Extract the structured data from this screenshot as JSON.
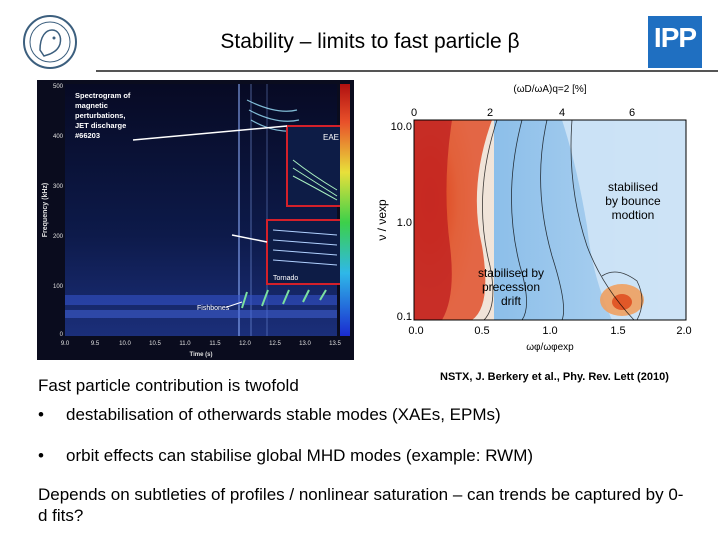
{
  "header": {
    "title": "Stability – limits to fast particle β",
    "logo_left": "max-planck-seal-logo",
    "logo_right_text": "IPP"
  },
  "spectrogram": {
    "caption_lines": [
      "Spectrogram of",
      "magnetic",
      "perturbations,",
      "JET discharge",
      "#66203"
    ],
    "y_axis_label": "Frequency (kHz)",
    "x_axis_label": "Time (s)",
    "y_ticks": [
      "500",
      "400",
      "300",
      "200",
      "100",
      "0"
    ],
    "x_ticks": [
      "9.0",
      "9.5",
      "10.0",
      "10.5",
      "11.0",
      "11.5",
      "12.0",
      "12.5",
      "13.0",
      "13.5"
    ],
    "labels": {
      "eae": "EAE",
      "tornado": "Tornado",
      "fishbones": "Fishbones"
    }
  },
  "stability_plot": {
    "top_axis_label": "(ωD/ωA)q=2 [%]",
    "top_ticks": [
      "0",
      "2",
      "4",
      "6"
    ],
    "y_axis_label": "ν / νexp",
    "y_ticks": [
      "10.0",
      "1.0",
      "0.1"
    ],
    "x_axis_label": "ωφ/ωφexp",
    "x_ticks": [
      "0.0",
      "0.5",
      "1.0",
      "1.5",
      "2.0"
    ],
    "annotation_bounce": [
      "stabilised",
      "by bounce",
      "modtion"
    ],
    "annotation_precession": [
      "stabilised by",
      "precession",
      "drift"
    ]
  },
  "body": {
    "heading": "Fast particle contribution is twofold",
    "citation": "NSTX, J. Berkery et al., Phy. Rev. Lett (2010)",
    "bullets": [
      "destabilisation of otherwards stable modes (XAEs, EPMs)",
      "orbit effects can stabilise global MHD modes (example: RWM)"
    ],
    "bullet_symbol": "•",
    "conclusion": "Depends on subtleties of profiles / nonlinear saturation – can trends be captured by 0-d fits?"
  },
  "colors": {
    "accent_blue": "#1f6fc1",
    "spectrogram_bg": "#0b0f2e",
    "annotation_box": "#d4202a"
  }
}
